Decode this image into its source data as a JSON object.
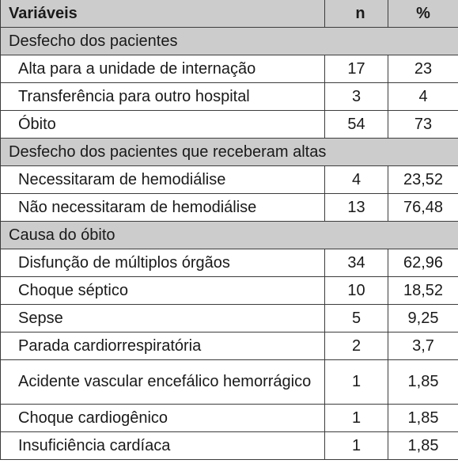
{
  "header": {
    "col1": "Variáveis",
    "col2": "n",
    "col3": "%"
  },
  "sections": [
    {
      "title": "Desfecho dos pacientes",
      "rows": [
        {
          "label": "Alta para a unidade de internação",
          "n": "17",
          "pct": "23"
        },
        {
          "label": "Transferência para outro hospital",
          "n": "3",
          "pct": "4"
        },
        {
          "label": "Óbito",
          "n": "54",
          "pct": "73"
        }
      ]
    },
    {
      "title": "Desfecho dos pacientes que receberam altas",
      "rows": [
        {
          "label": "Necessitaram de hemodiálise",
          "n": "4",
          "pct": "23,52"
        },
        {
          "label": "Não necessitaram de hemodiálise",
          "n": "13",
          "pct": "76,48"
        }
      ]
    },
    {
      "title": "Causa do óbito",
      "rows": [
        {
          "label": "Disfunção de múltiplos órgãos",
          "n": "34",
          "pct": "62,96"
        },
        {
          "label": "Choque séptico",
          "n": "10",
          "pct": "18,52"
        },
        {
          "label": "Sepse",
          "n": "5",
          "pct": "9,25"
        },
        {
          "label": "Parada cardiorrespiratória",
          "n": "2",
          "pct": "3,7"
        },
        {
          "label": "Acidente vascular encefálico hemorrágico",
          "n": "1",
          "pct": "1,85"
        },
        {
          "label": "Choque cardiogênico",
          "n": "1",
          "pct": "1,85"
        },
        {
          "label": "Insuficiência cardíaca",
          "n": "1",
          "pct": "1,85"
        }
      ]
    }
  ]
}
